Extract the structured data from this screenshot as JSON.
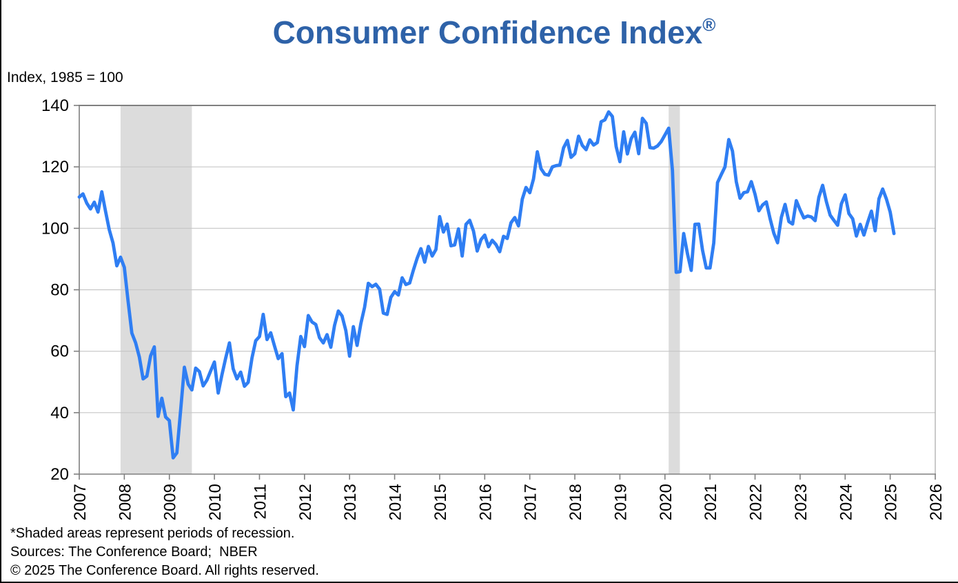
{
  "header": {
    "title": "Consumer Confidence Index",
    "registered_mark": "®",
    "axis_note": "Index, 1985 = 100"
  },
  "footnotes": {
    "recession_note": "*Shaded areas represent periods of recession.",
    "sources": "Sources: The Conference Board;  NBER",
    "copyright": "© 2025 The Conference Board. All rights reserved."
  },
  "colors": {
    "title_blue": "#2E62A8",
    "line_blue": "#2F7EF3",
    "recession_band_gray": "#DCDCDC",
    "gridline_gray": "#C6C6C6",
    "frame_gray": "#7F7F7F",
    "text_black": "#000000"
  },
  "chart_data": {
    "type": "line",
    "title": "Consumer Confidence Index®",
    "ylabel": "Index, 1985 = 100",
    "ylim": [
      20,
      140
    ],
    "y_ticks": [
      140,
      120,
      100,
      80,
      60,
      40,
      20
    ],
    "xlim": [
      2007,
      2026
    ],
    "x_ticks": [
      "2007",
      "2008",
      "2009",
      "2010",
      "2011",
      "2012",
      "2013",
      "2014",
      "2015",
      "2016",
      "2017",
      "2018",
      "2019",
      "2020",
      "2021",
      "2022",
      "2023",
      "2024",
      "2025",
      "2026"
    ],
    "grid": "horizontal-only",
    "legend": "none",
    "recession_bands": [
      {
        "start_decimal_year": 2007.917,
        "end_decimal_year": 2009.5
      },
      {
        "start_decimal_year": 2020.083,
        "end_decimal_year": 2020.333
      }
    ],
    "series": [
      {
        "name": "Consumer Confidence Index",
        "frequency": "monthly",
        "start_year": 2007,
        "start_month": 1,
        "values": [
          110.2,
          111.2,
          108.2,
          106.3,
          108.5,
          105.3,
          111.9,
          105.6,
          99.5,
          95.2,
          87.8,
          90.6,
          87.3,
          76.4,
          65.9,
          62.8,
          58.1,
          51.0,
          51.9,
          58.5,
          61.4,
          38.8,
          44.7,
          38.6,
          37.4,
          25.3,
          26.9,
          40.8,
          54.8,
          49.3,
          47.4,
          54.5,
          53.4,
          48.7,
          50.6,
          53.6,
          56.5,
          46.4,
          52.3,
          57.7,
          62.7,
          54.3,
          51.0,
          53.2,
          48.6,
          49.9,
          57.8,
          63.4,
          64.8,
          72.0,
          63.8,
          66.0,
          61.7,
          57.6,
          59.2,
          45.2,
          46.4,
          40.9,
          55.2,
          64.8,
          61.5,
          71.6,
          69.5,
          68.7,
          64.4,
          62.7,
          65.4,
          61.3,
          68.4,
          73.1,
          71.5,
          66.7,
          58.4,
          68.0,
          61.9,
          69.0,
          74.3,
          82.1,
          81.0,
          81.8,
          80.2,
          72.4,
          72.0,
          77.5,
          79.4,
          78.3,
          83.9,
          81.7,
          82.2,
          86.4,
          90.3,
          93.4,
          89.0,
          94.1,
          91.0,
          93.1,
          103.8,
          98.8,
          101.4,
          94.3,
          94.6,
          99.8,
          91.0,
          101.3,
          102.6,
          99.1,
          92.6,
          96.3,
          97.8,
          94.0,
          96.1,
          94.7,
          92.4,
          97.4,
          96.7,
          101.8,
          103.5,
          100.8,
          109.5,
          113.3,
          111.6,
          116.1,
          124.9,
          119.4,
          117.6,
          117.3,
          120.0,
          120.4,
          120.6,
          126.2,
          128.6,
          123.1,
          124.3,
          130.0,
          127.0,
          125.6,
          128.8,
          127.1,
          127.9,
          134.7,
          135.3,
          137.9,
          136.4,
          126.6,
          121.7,
          131.4,
          124.2,
          129.2,
          131.3,
          124.3,
          135.8,
          134.2,
          126.3,
          126.1,
          126.8,
          128.2,
          130.4,
          132.6,
          118.8,
          85.7,
          85.9,
          98.3,
          91.7,
          86.3,
          101.3,
          101.4,
          92.9,
          87.1,
          87.1,
          95.2,
          114.9,
          117.5,
          120.0,
          128.9,
          125.1,
          115.2,
          109.8,
          111.6,
          111.9,
          115.2,
          111.1,
          105.7,
          107.6,
          108.6,
          103.2,
          98.4,
          95.3,
          103.6,
          107.8,
          102.2,
          101.4,
          109.0,
          106.0,
          103.4,
          104.0,
          103.7,
          102.5,
          110.1,
          114.0,
          108.7,
          104.3,
          102.6,
          101.0,
          108.0,
          110.9,
          104.8,
          103.1,
          97.5,
          101.3,
          97.8,
          101.9,
          105.6,
          99.2,
          109.6,
          112.8,
          109.5,
          105.3,
          98.3
        ]
      }
    ]
  }
}
